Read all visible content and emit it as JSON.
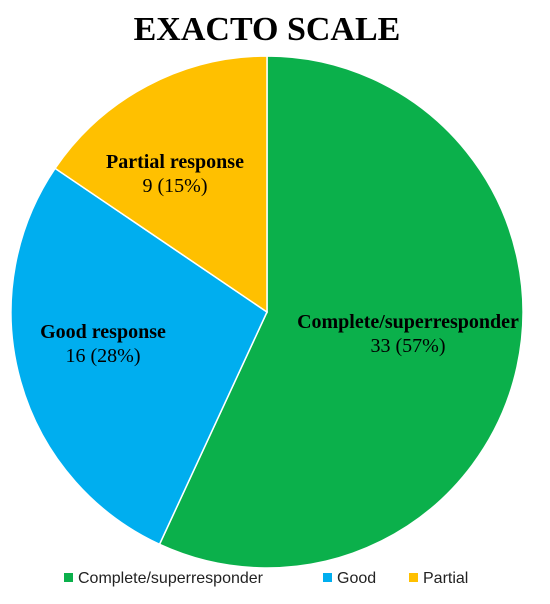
{
  "chart_data": {
    "type": "pie",
    "title": "EXACTO SCALE",
    "categories": [
      "Complete/superresponder",
      "Good response",
      "Partial response"
    ],
    "values": [
      33,
      16,
      9
    ],
    "value_labels": [
      "33 (57%)",
      "16 (28%)",
      "9 (15%)"
    ],
    "colors": [
      "#0BB04B",
      "#00AEEF",
      "#FFC000"
    ],
    "legend": {
      "position": "bottom",
      "entries": [
        "Complete/superresponder",
        "Good",
        "Partial"
      ]
    }
  }
}
